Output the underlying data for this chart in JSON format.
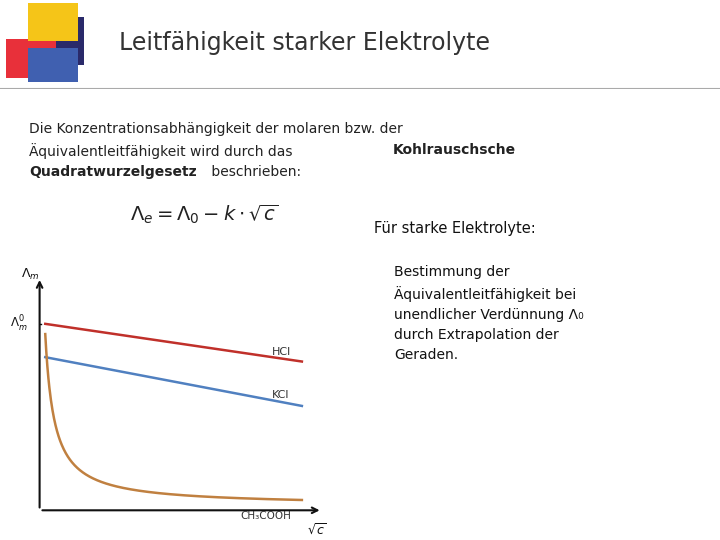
{
  "title": "Leitfähigkeit starker Elektrolyte",
  "slide_bg": "#ffffff",
  "body_line1": "Die Konzentrationsabhängigkeit der molaren bzw. der",
  "body_line2a": "Äquivalentleitfähigkeit wird durch das ",
  "body_line2b": "Kohlrauschsche",
  "body_line3a": "Quadratwurzelgesetz",
  "body_line3b": " beschrieben:",
  "hcl_label": "HCl",
  "kcl_label": "KCl",
  "ch3cooh_label": "CH₃COOH",
  "hcl_color": "#c0302a",
  "kcl_color": "#5080c0",
  "ch3cooh_color": "#c08040",
  "right_title": "Für starke Elektrolyte:",
  "right_body": "Bestimmung der\nÄquivalentleitfähigkeit bei\nunendlicher Verdünnung Λ₀\ndurch Extrapolation der\nGeraden."
}
